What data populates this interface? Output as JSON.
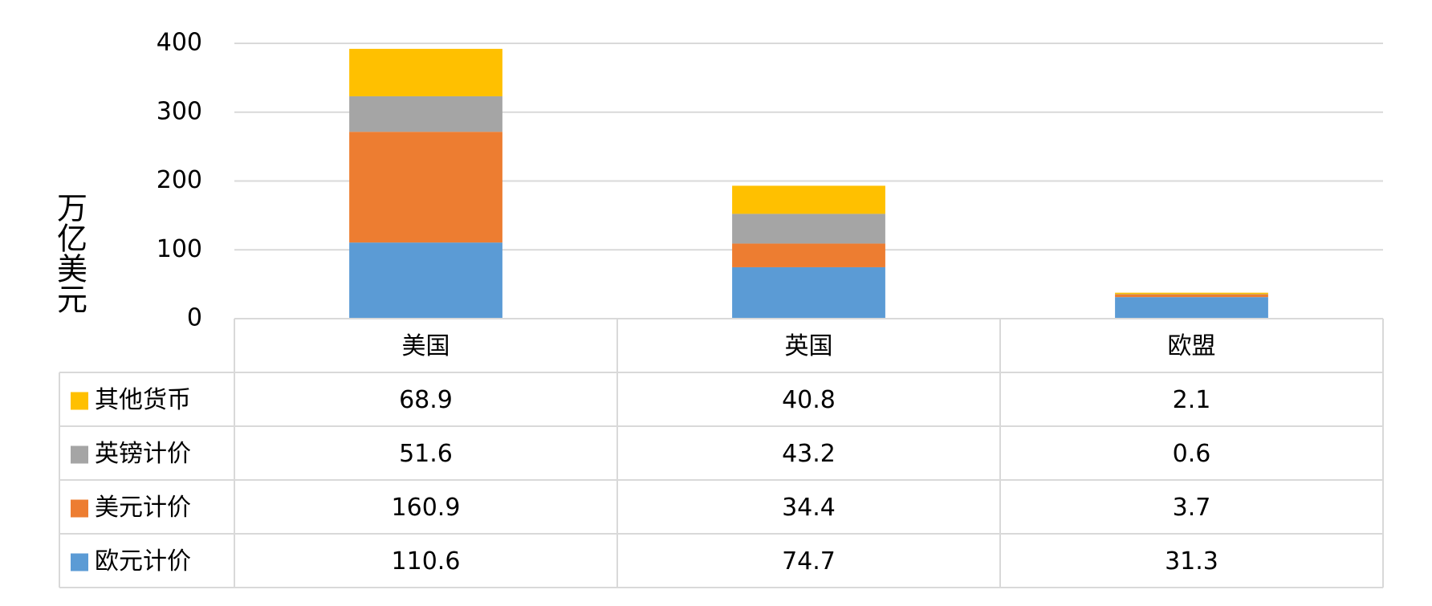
{
  "chart_data": {
    "type": "bar",
    "stacked": true,
    "y_label": "万亿美元",
    "categories": [
      "美国",
      "英国",
      "欧盟"
    ],
    "series": [
      {
        "name": "欧元计价",
        "color": "#5b9bd5",
        "values": [
          110.6,
          74.7,
          31.3
        ]
      },
      {
        "name": "美元计价",
        "color": "#ed7d31",
        "values": [
          160.9,
          34.4,
          3.7
        ]
      },
      {
        "name": "英镑计价",
        "color": "#a5a5a5",
        "values": [
          51.6,
          43.2,
          0.6
        ]
      },
      {
        "name": "其他货币",
        "color": "#ffc000",
        "values": [
          68.9,
          40.8,
          2.1
        ]
      }
    ],
    "ylim": [
      0,
      400
    ],
    "yticks": [
      0,
      100,
      200,
      300,
      400
    ],
    "grid": true
  }
}
